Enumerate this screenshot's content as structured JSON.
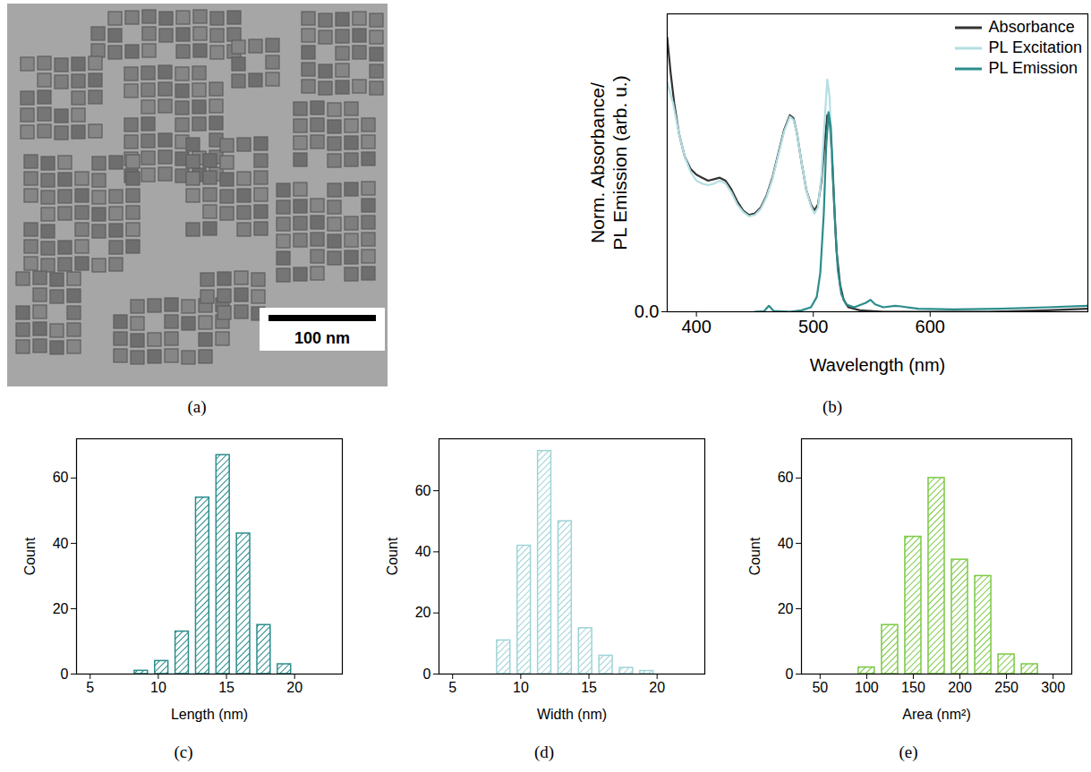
{
  "chart_data": [
    {
      "type": "image",
      "label": "(a)",
      "scale_bar": "100 nm"
    },
    {
      "type": "line",
      "label": "(b)",
      "xlabel": "Wavelength (nm)",
      "ylabel": "Norm. Absorbance/ PL Emission (arb. u.)",
      "xlim": [
        375,
        735
      ],
      "xticks": [
        400,
        500,
        600
      ],
      "ylim": [
        0,
        1
      ],
      "yticks": [
        {
          "value": 0,
          "label": "0.0"
        }
      ],
      "legend": "top-right",
      "series": [
        {
          "name": "Absorbance",
          "color": "#333333",
          "x": [
            375,
            378,
            381,
            385,
            390,
            395,
            400,
            405,
            410,
            415,
            420,
            425,
            430,
            435,
            440,
            445,
            450,
            455,
            460,
            465,
            470,
            475,
            480,
            483,
            486,
            490,
            494,
            498,
            501,
            504,
            507,
            510,
            512,
            514,
            516,
            518,
            520,
            523,
            526,
            530,
            540,
            560,
            600,
            650,
            700,
            735
          ],
          "values": [
            0.92,
            0.8,
            0.7,
            0.6,
            0.52,
            0.48,
            0.46,
            0.45,
            0.44,
            0.445,
            0.45,
            0.44,
            0.41,
            0.37,
            0.34,
            0.325,
            0.33,
            0.35,
            0.39,
            0.45,
            0.53,
            0.61,
            0.66,
            0.65,
            0.6,
            0.5,
            0.41,
            0.36,
            0.34,
            0.36,
            0.44,
            0.58,
            0.66,
            0.65,
            0.52,
            0.35,
            0.2,
            0.09,
            0.04,
            0.015,
            0.005,
            0.0,
            0.0,
            0.0,
            0.005,
            0.01
          ]
        },
        {
          "name": "PL Excitation",
          "color": "#b2dfe3",
          "x": [
            375,
            380,
            385,
            390,
            395,
            400,
            405,
            410,
            415,
            420,
            425,
            430,
            435,
            440,
            445,
            450,
            455,
            460,
            465,
            470,
            475,
            480,
            483,
            486,
            490,
            494,
            498,
            501,
            504,
            507,
            510,
            512,
            514,
            516
          ],
          "values": [
            0.77,
            0.7,
            0.6,
            0.52,
            0.47,
            0.44,
            0.43,
            0.425,
            0.43,
            0.44,
            0.43,
            0.4,
            0.36,
            0.335,
            0.32,
            0.325,
            0.345,
            0.385,
            0.445,
            0.525,
            0.605,
            0.655,
            0.645,
            0.6,
            0.5,
            0.41,
            0.355,
            0.33,
            0.35,
            0.46,
            0.66,
            0.78,
            0.72,
            0.5
          ]
        },
        {
          "name": "PL Emission",
          "color": "#2b8c8c",
          "x": [
            450,
            458,
            462,
            466,
            480,
            490,
            498,
            503,
            506,
            509,
            511,
            513,
            515,
            517,
            519,
            521,
            524,
            528,
            535,
            545,
            549,
            553,
            560,
            570,
            575,
            590,
            620,
            660,
            700,
            735
          ],
          "values": [
            0.0,
            0.002,
            0.02,
            0.003,
            0.0,
            0.005,
            0.015,
            0.05,
            0.13,
            0.33,
            0.55,
            0.67,
            0.62,
            0.45,
            0.27,
            0.14,
            0.06,
            0.025,
            0.015,
            0.03,
            0.04,
            0.025,
            0.015,
            0.02,
            0.018,
            0.01,
            0.008,
            0.01,
            0.015,
            0.02
          ]
        }
      ]
    },
    {
      "type": "histogram",
      "label": "(c)",
      "xlabel": "Length (nm)",
      "ylabel": "Count",
      "color": "#2b8c8c",
      "bins": [
        8,
        9.5,
        11,
        12.5,
        14,
        15.5,
        17,
        18.5,
        20
      ],
      "counts": [
        1,
        4,
        13,
        54,
        67,
        43,
        15,
        3
      ],
      "xlim": [
        4,
        23.5
      ],
      "xticks": [
        5,
        10,
        15,
        20
      ],
      "ylim": [
        0,
        72
      ],
      "yticks": [
        0,
        20,
        40,
        60
      ]
    },
    {
      "type": "histogram",
      "label": "(d)",
      "xlabel": "Width (nm)",
      "ylabel": "Count",
      "color": "#9fd3d6",
      "bins": [
        8,
        9.5,
        11,
        12.5,
        14,
        15.5,
        17,
        18.5,
        20
      ],
      "counts": [
        11,
        42,
        73,
        50,
        15,
        6,
        2,
        1
      ],
      "xlim": [
        4,
        23.5
      ],
      "xticks": [
        5,
        10,
        15,
        20
      ],
      "ylim": [
        0,
        77
      ],
      "yticks": [
        0,
        20,
        40,
        60
      ]
    },
    {
      "type": "histogram",
      "label": "(e)",
      "xlabel": "Area (nm²)",
      "ylabel": "Count",
      "color": "#7ac943",
      "bins": [
        87.5,
        112.5,
        137.5,
        162.5,
        187.5,
        212.5,
        237.5,
        262.5,
        287.5
      ],
      "counts": [
        2,
        15,
        42,
        60,
        35,
        30,
        6,
        3
      ],
      "xlim": [
        30,
        320
      ],
      "xticks": [
        50,
        100,
        150,
        200,
        250,
        300
      ],
      "ylim": [
        0,
        72
      ],
      "yticks": [
        0,
        20,
        40,
        60
      ]
    }
  ]
}
